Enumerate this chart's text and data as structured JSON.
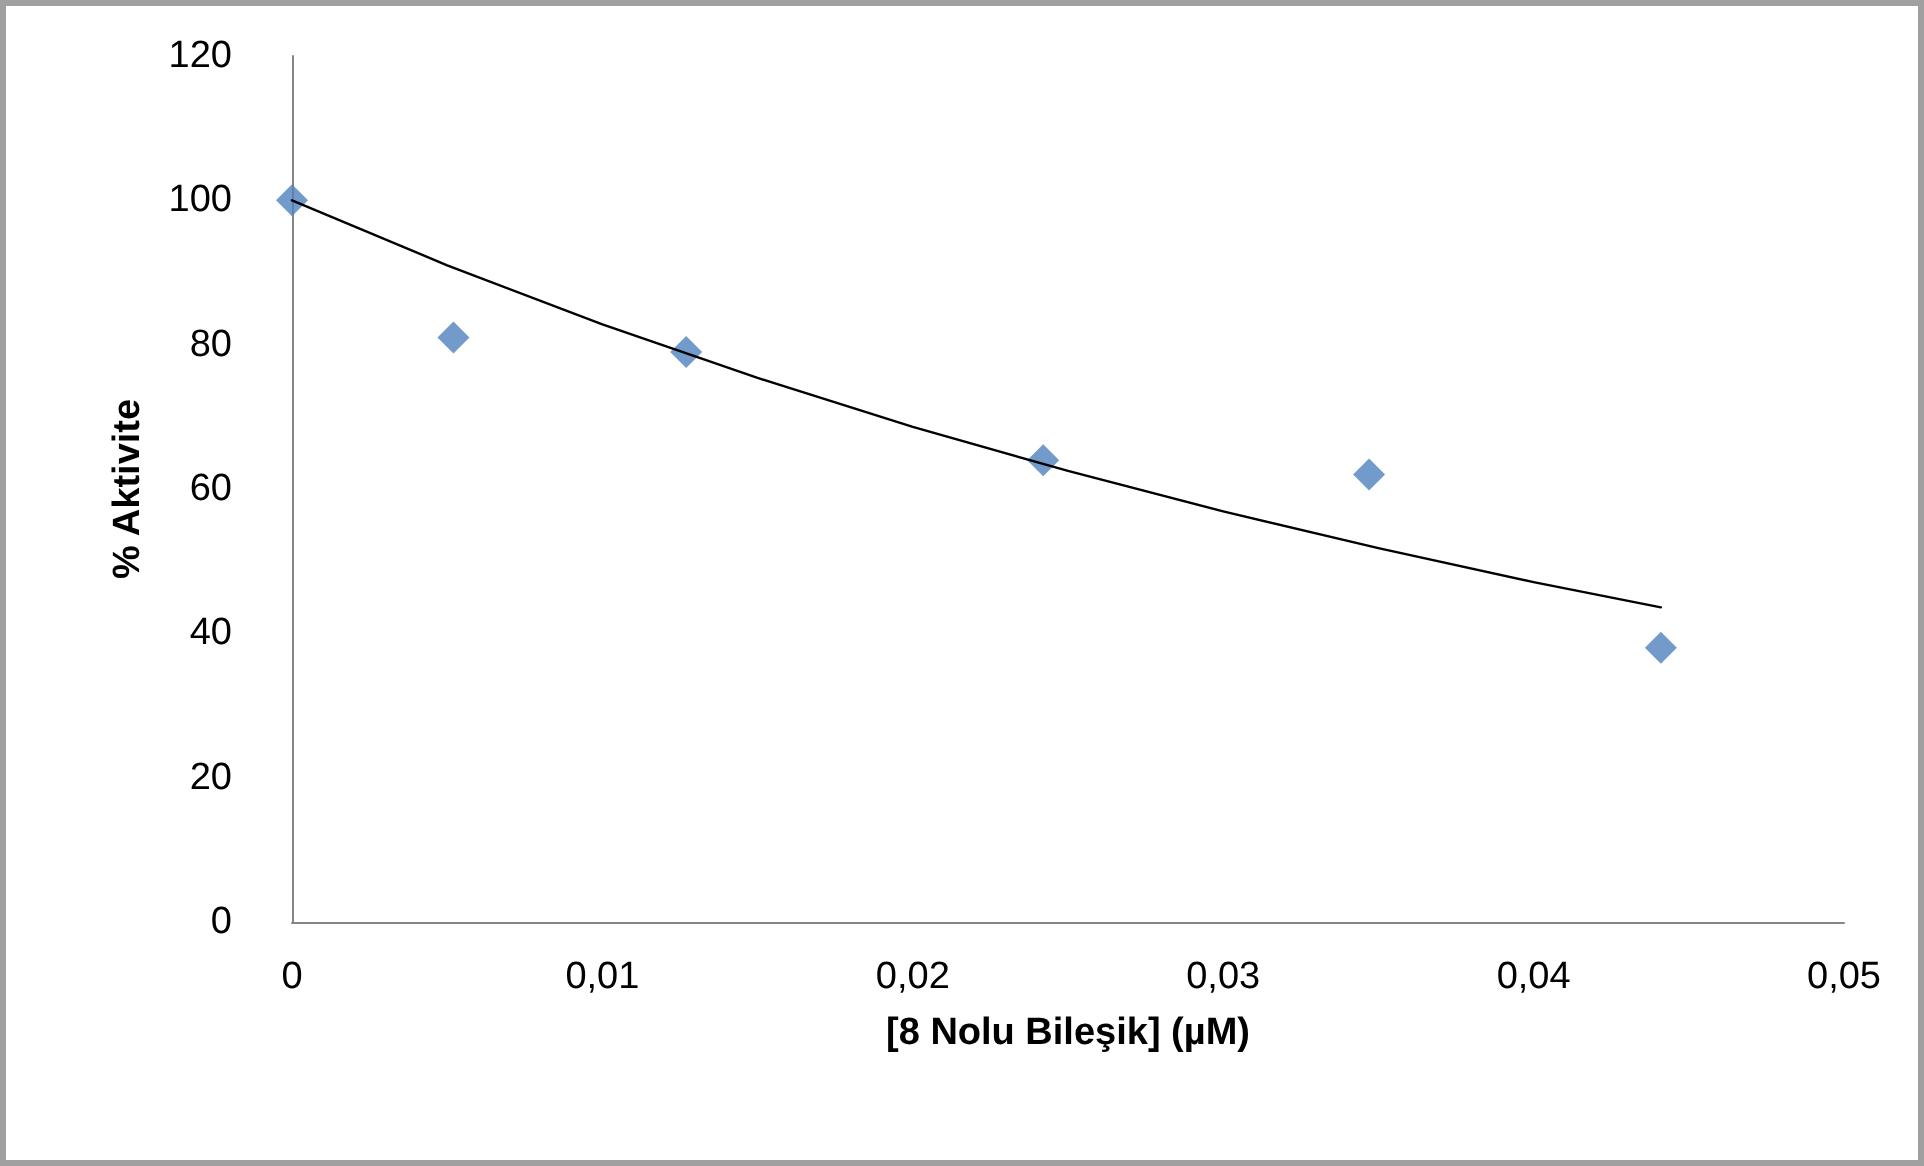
{
  "chart_data": {
    "type": "scatter",
    "xlabel": "[8 Nolu Bileşik] (µM)",
    "ylabel": "% Aktivite",
    "xlim": [
      0,
      0.05
    ],
    "xticks": [
      0,
      {
        "value": 0.01,
        "label": "0,01"
      },
      {
        "value": 0.02,
        "label": "0,02"
      },
      {
        "value": 0.03,
        "label": "0,03"
      },
      {
        "value": 0.04,
        "label": "0,04"
      },
      {
        "value": 0.05,
        "label": "0,05"
      }
    ],
    "ylim": [
      0,
      120
    ],
    "yticks": [
      0,
      20,
      40,
      60,
      80,
      100,
      120
    ],
    "grid": false,
    "marker": "diamond",
    "series": [
      {
        "color": "#4f81bd",
        "x": [
          0,
          0.0052,
          0.0127,
          0.0242,
          0.0347,
          0.0441
        ],
        "values": [
          100,
          81,
          79,
          64,
          62,
          38
        ]
      },
      {
        "type": "line",
        "color": "#000000",
        "marker": "none",
        "line_style": "solid",
        "x": [
          0,
          0.005,
          0.01,
          0.015,
          0.02,
          0.025,
          0.03,
          0.035,
          0.04,
          0.0441
        ],
        "values": [
          100,
          91,
          82.8,
          75.4,
          68.6,
          62.5,
          56.9,
          51.8,
          47.1,
          43.6
        ]
      }
    ]
  }
}
